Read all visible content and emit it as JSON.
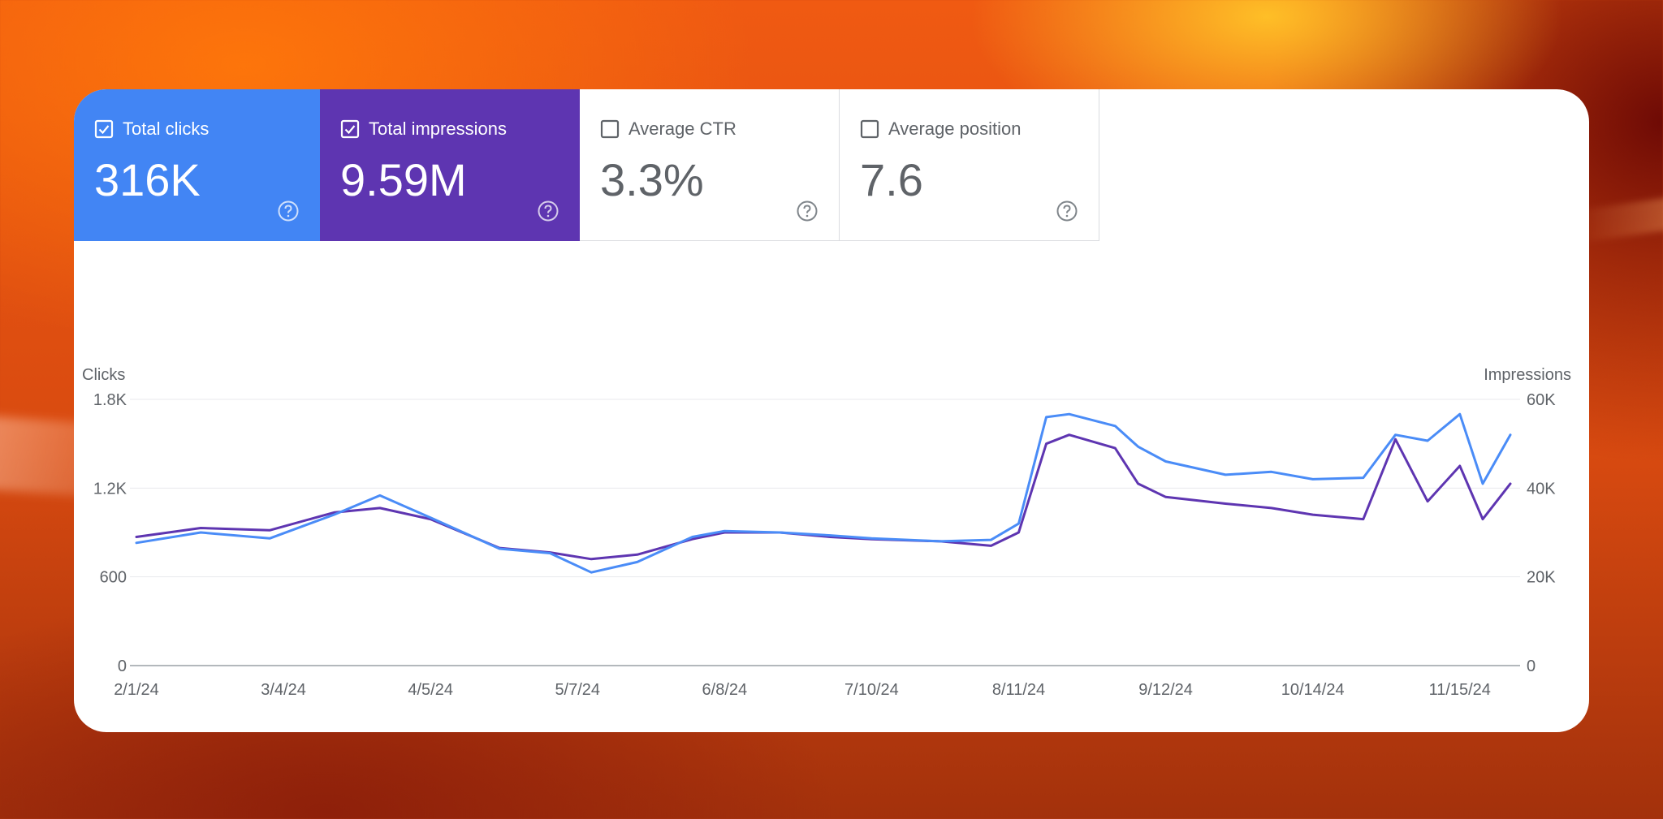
{
  "metrics": [
    {
      "label": "Total clicks",
      "value": "316K",
      "checked": true,
      "color": "#4285f4"
    },
    {
      "label": "Total impressions",
      "value": "9.59M",
      "checked": true,
      "color": "#5e35b1"
    },
    {
      "label": "Average CTR",
      "value": "3.3%",
      "checked": false
    },
    {
      "label": "Average position",
      "value": "7.6",
      "checked": false
    }
  ],
  "icons": {
    "checkbox": "checkbox-icon",
    "help": "help-circle-icon"
  },
  "chart_data": {
    "type": "line",
    "left_axis_label": "Clicks",
    "right_axis_label": "Impressions",
    "left_ticks": [
      "0",
      "600",
      "1.2K",
      "1.8K"
    ],
    "left_ylim": [
      0,
      1800
    ],
    "right_ticks": [
      "0",
      "20K",
      "40K",
      "60K"
    ],
    "right_ylim": [
      0,
      60000
    ],
    "x_ticks": [
      "2/1/24",
      "3/4/24",
      "4/5/24",
      "5/7/24",
      "6/8/24",
      "7/10/24",
      "8/11/24",
      "9/12/24",
      "10/14/24",
      "11/15/24"
    ],
    "x_range": [
      "2/1/24",
      "11/26/24"
    ],
    "grid": true,
    "series": [
      {
        "name": "Total clicks",
        "axis": "left",
        "color": "#4a8cf7",
        "x": [
          "2/1/24",
          "2/15/24",
          "3/1/24",
          "3/15/24",
          "3/25/24",
          "4/5/24",
          "4/20/24",
          "5/1/24",
          "5/10/24",
          "5/20/24",
          "6/1/24",
          "6/8/24",
          "6/20/24",
          "7/1/24",
          "7/10/24",
          "7/25/24",
          "8/5/24",
          "8/11/24",
          "8/17/24",
          "8/22/24",
          "9/1/24",
          "9/6/24",
          "9/12/24",
          "9/25/24",
          "10/5/24",
          "10/14/24",
          "10/25/24",
          "11/1/24",
          "11/8/24",
          "11/15/24",
          "11/20/24",
          "11/26/24"
        ],
        "values": [
          830,
          900,
          860,
          1020,
          1150,
          1000,
          790,
          760,
          630,
          700,
          870,
          910,
          900,
          880,
          860,
          840,
          850,
          960,
          1680,
          1700,
          1620,
          1480,
          1380,
          1290,
          1310,
          1260,
          1270,
          1560,
          1520,
          1700,
          1230,
          1560
        ]
      },
      {
        "name": "Total impressions",
        "axis": "right",
        "color": "#5e35b1",
        "x": [
          "2/1/24",
          "2/15/24",
          "3/1/24",
          "3/15/24",
          "3/25/24",
          "4/5/24",
          "4/20/24",
          "5/1/24",
          "5/10/24",
          "5/20/24",
          "6/1/24",
          "6/8/24",
          "6/20/24",
          "7/1/24",
          "7/10/24",
          "7/25/24",
          "8/5/24",
          "8/11/24",
          "8/17/24",
          "8/22/24",
          "9/1/24",
          "9/6/24",
          "9/12/24",
          "9/25/24",
          "10/5/24",
          "10/14/24",
          "10/25/24",
          "11/1/24",
          "11/8/24",
          "11/15/24",
          "11/20/24",
          "11/26/24"
        ],
        "values": [
          29000,
          31000,
          30500,
          34500,
          35500,
          33000,
          26500,
          25500,
          24000,
          25000,
          28500,
          30000,
          30000,
          29000,
          28500,
          28000,
          27000,
          30000,
          50000,
          52000,
          49000,
          41000,
          38000,
          36500,
          35500,
          34000,
          33000,
          51000,
          37000,
          45000,
          33000,
          41000
        ]
      }
    ]
  }
}
